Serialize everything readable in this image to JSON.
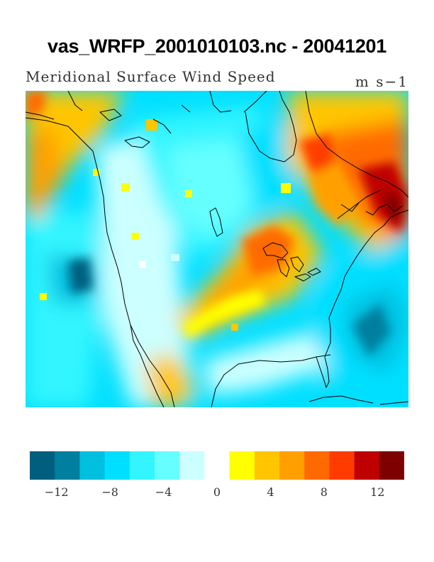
{
  "title": "vas_WRFP_2001010103.nc - 20041201",
  "subtitle": "Meridional Surface Wind Speed",
  "units": "m s−1",
  "colors": {
    "neg": [
      "#005f7f",
      "#007f9f",
      "#00bfdf",
      "#00dfff",
      "#33f5ff",
      "#66ffff",
      "#ccffff"
    ],
    "zero": "#ffffff",
    "pos": [
      "#ffff00",
      "#ffc600",
      "#ffa000",
      "#ff6a00",
      "#ff3c00",
      "#bf0000",
      "#7f0000"
    ],
    "ocean_base": "#00dfff",
    "coastline": "#000000"
  },
  "colorbar": {
    "labels": [
      "−12",
      "−8",
      "−4",
      "0",
      "4",
      "8",
      "12"
    ],
    "values": [
      -12,
      -8,
      -4,
      0,
      4,
      8,
      12
    ],
    "bins": [
      -14,
      -12,
      -10,
      -8,
      -6,
      -4,
      -2,
      0,
      2,
      4,
      6,
      8,
      10,
      12,
      14
    ]
  }
}
